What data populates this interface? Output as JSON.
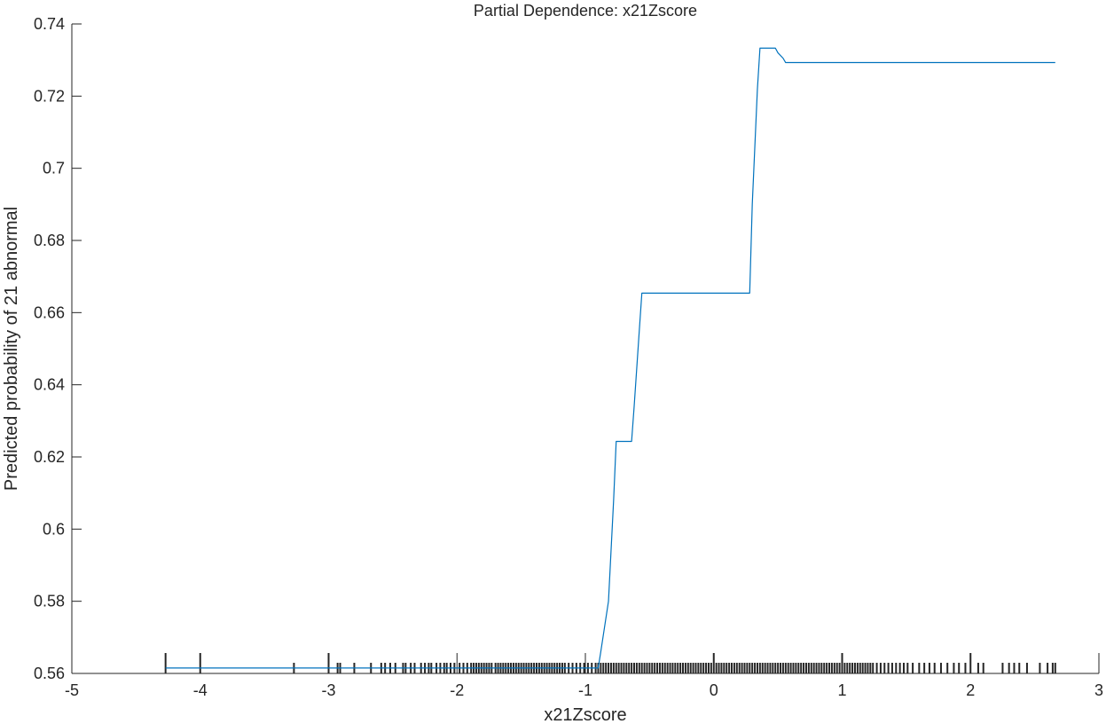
{
  "chart_data": {
    "type": "line",
    "title": "Partial Dependence: x21Zscore",
    "xlabel": "x21Zscore",
    "ylabel": "Predicted probability of 21 abnormal",
    "xlim": [
      -5,
      3
    ],
    "ylim": [
      0.56,
      0.74
    ],
    "xticks": [
      -5,
      -4,
      -3,
      -2,
      -1,
      0,
      1,
      2,
      3
    ],
    "xtick_labels": [
      "-5",
      "-4",
      "-3",
      "-2",
      "-1",
      "0",
      "1",
      "2",
      "3"
    ],
    "yticks": [
      0.56,
      0.58,
      0.6,
      0.62,
      0.64,
      0.66,
      0.68,
      0.7,
      0.72,
      0.74
    ],
    "ytick_labels": [
      "0.56",
      "0.58",
      "0.6",
      "0.62",
      "0.64",
      "0.66",
      "0.68",
      "0.7",
      "0.72",
      "0.74"
    ],
    "grid": false,
    "line_color": "#0072BD",
    "rug_color": "#262626",
    "series": [
      {
        "x": [
          -4.27,
          -0.9,
          -0.88,
          -0.82,
          -0.78,
          -0.76,
          -0.64,
          -0.62,
          -0.58,
          -0.56,
          0.28,
          0.3,
          0.34,
          0.36,
          0.48,
          0.5,
          0.54,
          0.56,
          2.66
        ],
        "y": [
          0.5615,
          0.5615,
          0.566,
          0.58,
          0.608,
          0.6243,
          0.6243,
          0.634,
          0.655,
          0.6654,
          0.6654,
          0.69,
          0.722,
          0.7333,
          0.7333,
          0.732,
          0.7305,
          0.7293,
          0.7293
        ]
      }
    ],
    "rug_x": [
      -4.27,
      -4.0,
      -3.27,
      -3.0,
      -2.93,
      -2.91,
      -2.8,
      -2.67,
      -2.59,
      -2.56,
      -2.52,
      -2.48,
      -2.42,
      -2.4,
      -2.36,
      -2.33,
      -2.28,
      -2.25,
      -2.22,
      -2.2,
      -2.16,
      -2.13,
      -2.1,
      -2.08,
      -2.05,
      -2.02,
      -1.98,
      -1.95,
      -1.92,
      -1.89,
      -1.87,
      -1.85,
      -1.83,
      -1.81,
      -1.79,
      -1.77,
      -1.75,
      -1.73,
      -1.7,
      -1.68,
      -1.66,
      -1.64,
      -1.62,
      -1.6,
      -1.58,
      -1.56,
      -1.54,
      -1.52,
      -1.5,
      -1.48,
      -1.46,
      -1.44,
      -1.42,
      -1.4,
      -1.38,
      -1.36,
      -1.34,
      -1.32,
      -1.3,
      -1.28,
      -1.26,
      -1.24,
      -1.22,
      -1.2,
      -1.18,
      -1.16,
      -1.13,
      -1.1,
      -1.07,
      -1.04,
      -1.01,
      -0.98,
      -0.95,
      -0.92,
      -0.9,
      -0.88,
      -0.86,
      -0.84,
      -0.82,
      -0.8,
      -0.78,
      -0.76,
      -0.74,
      -0.72,
      -0.7,
      -0.68,
      -0.66,
      -0.64,
      -0.62,
      -0.6,
      -0.58,
      -0.56,
      -0.54,
      -0.52,
      -0.5,
      -0.48,
      -0.46,
      -0.44,
      -0.42,
      -0.4,
      -0.38,
      -0.36,
      -0.34,
      -0.32,
      -0.3,
      -0.28,
      -0.26,
      -0.24,
      -0.22,
      -0.2,
      -0.18,
      -0.16,
      -0.14,
      -0.12,
      -0.1,
      -0.08,
      -0.06,
      -0.04,
      -0.02,
      0.0,
      0.02,
      0.04,
      0.06,
      0.08,
      0.1,
      0.12,
      0.14,
      0.16,
      0.18,
      0.2,
      0.22,
      0.24,
      0.26,
      0.28,
      0.3,
      0.32,
      0.34,
      0.36,
      0.38,
      0.4,
      0.42,
      0.44,
      0.46,
      0.48,
      0.5,
      0.52,
      0.54,
      0.56,
      0.58,
      0.6,
      0.62,
      0.64,
      0.66,
      0.68,
      0.7,
      0.72,
      0.74,
      0.76,
      0.78,
      0.8,
      0.82,
      0.84,
      0.86,
      0.88,
      0.9,
      0.92,
      0.94,
      0.96,
      0.98,
      1.0,
      1.02,
      1.04,
      1.06,
      1.08,
      1.1,
      1.12,
      1.14,
      1.16,
      1.18,
      1.2,
      1.22,
      1.24,
      1.27,
      1.3,
      1.33,
      1.36,
      1.39,
      1.42,
      1.45,
      1.48,
      1.51,
      1.55,
      1.6,
      1.64,
      1.68,
      1.72,
      1.77,
      1.82,
      1.87,
      1.91,
      1.96,
      2.0,
      2.06,
      2.1,
      2.25,
      2.3,
      2.34,
      2.38,
      2.44,
      2.54,
      2.6,
      2.64,
      2.66
    ],
    "rug_major_x": [
      -4.27,
      -4.0,
      -3.0,
      -2.0,
      -1.0,
      0.0,
      1.0,
      2.0
    ]
  }
}
